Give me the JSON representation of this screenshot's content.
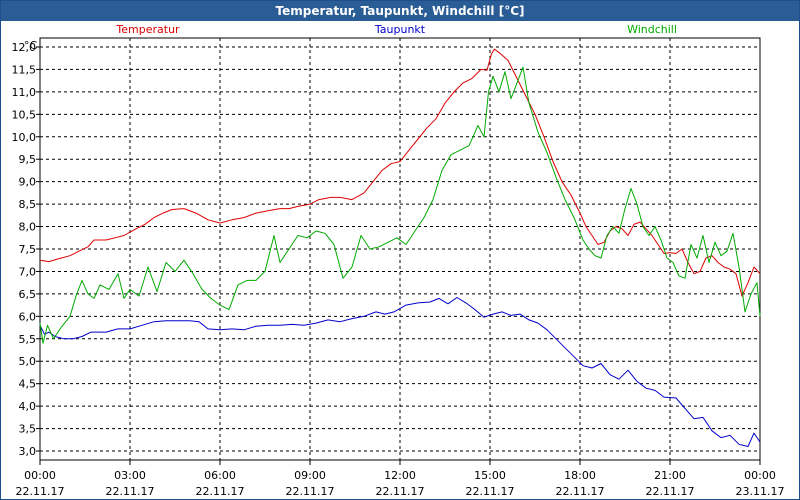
{
  "window": {
    "title": "Temperatur, Taupunkt, Windchill [°C]"
  },
  "chart_data": {
    "type": "line",
    "ylabel": "°C",
    "ylim": [
      2.8,
      12.2
    ],
    "yticks": [
      "3,0",
      "3,5",
      "4,0",
      "4,5",
      "5,0",
      "5,5",
      "6,0",
      "6,5",
      "7,0",
      "7,5",
      "8,0",
      "8,5",
      "9,0",
      "9,5",
      "10,0",
      "10,5",
      "11,0",
      "11,5",
      "12,0"
    ],
    "ytick_values": [
      3.0,
      3.5,
      4.0,
      4.5,
      5.0,
      5.5,
      6.0,
      6.5,
      7.0,
      7.5,
      8.0,
      8.5,
      9.0,
      9.5,
      10.0,
      10.5,
      11.0,
      11.5,
      12.0
    ],
    "xlim_hours": [
      0,
      24
    ],
    "xticks": [
      {
        "h": 0,
        "time": "00:00",
        "date": "22.11.17"
      },
      {
        "h": 3,
        "time": "03:00",
        "date": "22.11.17"
      },
      {
        "h": 6,
        "time": "06:00",
        "date": "22.11.17"
      },
      {
        "h": 9,
        "time": "09:00",
        "date": "22.11.17"
      },
      {
        "h": 12,
        "time": "12:00",
        "date": "22.11.17"
      },
      {
        "h": 15,
        "time": "15:00",
        "date": "22.11.17"
      },
      {
        "h": 18,
        "time": "18:00",
        "date": "22.11.17"
      },
      {
        "h": 21,
        "time": "21:00",
        "date": "22.11.17"
      },
      {
        "h": 24,
        "time": "00:00",
        "date": "23.11.17"
      }
    ],
    "grid": true,
    "series": [
      {
        "name": "Temperatur",
        "color": "#dd0000",
        "legend_anchor": "left",
        "points": [
          [
            0.0,
            7.25
          ],
          [
            0.3,
            7.22
          ],
          [
            0.6,
            7.28
          ],
          [
            1.0,
            7.35
          ],
          [
            1.3,
            7.45
          ],
          [
            1.6,
            7.55
          ],
          [
            1.8,
            7.7
          ],
          [
            2.2,
            7.7
          ],
          [
            2.5,
            7.75
          ],
          [
            2.8,
            7.8
          ],
          [
            3.2,
            7.95
          ],
          [
            3.5,
            8.05
          ],
          [
            3.8,
            8.2
          ],
          [
            4.1,
            8.3
          ],
          [
            4.4,
            8.38
          ],
          [
            4.8,
            8.4
          ],
          [
            5.2,
            8.3
          ],
          [
            5.6,
            8.15
          ],
          [
            6.0,
            8.08
          ],
          [
            6.4,
            8.15
          ],
          [
            6.8,
            8.2
          ],
          [
            7.2,
            8.3
          ],
          [
            7.6,
            8.35
          ],
          [
            8.0,
            8.4
          ],
          [
            8.3,
            8.4
          ],
          [
            8.6,
            8.45
          ],
          [
            9.0,
            8.5
          ],
          [
            9.3,
            8.6
          ],
          [
            9.7,
            8.65
          ],
          [
            10.0,
            8.65
          ],
          [
            10.4,
            8.6
          ],
          [
            10.8,
            8.75
          ],
          [
            11.1,
            9.0
          ],
          [
            11.4,
            9.25
          ],
          [
            11.7,
            9.4
          ],
          [
            12.0,
            9.45
          ],
          [
            12.3,
            9.7
          ],
          [
            12.6,
            9.95
          ],
          [
            12.9,
            10.2
          ],
          [
            13.2,
            10.4
          ],
          [
            13.5,
            10.75
          ],
          [
            13.8,
            11.0
          ],
          [
            14.1,
            11.2
          ],
          [
            14.4,
            11.3
          ],
          [
            14.7,
            11.5
          ],
          [
            14.9,
            11.48
          ],
          [
            15.05,
            11.85
          ],
          [
            15.15,
            11.95
          ],
          [
            15.35,
            11.85
          ],
          [
            15.6,
            11.7
          ],
          [
            15.9,
            11.3
          ],
          [
            16.2,
            10.9
          ],
          [
            16.5,
            10.5
          ],
          [
            16.8,
            10.0
          ],
          [
            17.1,
            9.45
          ],
          [
            17.4,
            9.0
          ],
          [
            17.7,
            8.7
          ],
          [
            18.0,
            8.3
          ],
          [
            18.2,
            8.0
          ],
          [
            18.4,
            7.8
          ],
          [
            18.6,
            7.6
          ],
          [
            18.8,
            7.65
          ],
          [
            19.0,
            7.9
          ],
          [
            19.2,
            8.0
          ],
          [
            19.4,
            7.95
          ],
          [
            19.6,
            7.8
          ],
          [
            19.8,
            8.05
          ],
          [
            20.0,
            8.1
          ],
          [
            20.2,
            7.95
          ],
          [
            20.4,
            7.8
          ],
          [
            20.6,
            7.6
          ],
          [
            20.8,
            7.4
          ],
          [
            21.0,
            7.42
          ],
          [
            21.2,
            7.4
          ],
          [
            21.4,
            7.5
          ],
          [
            21.6,
            7.2
          ],
          [
            21.8,
            6.95
          ],
          [
            22.0,
            7.0
          ],
          [
            22.2,
            7.3
          ],
          [
            22.4,
            7.35
          ],
          [
            22.6,
            7.2
          ],
          [
            22.8,
            7.1
          ],
          [
            23.0,
            7.05
          ],
          [
            23.2,
            6.95
          ],
          [
            23.4,
            6.45
          ],
          [
            23.6,
            6.75
          ],
          [
            23.8,
            7.1
          ],
          [
            24.0,
            6.95
          ]
        ]
      },
      {
        "name": "Taupunkt",
        "color": "#0000cc",
        "legend_anchor": "middle",
        "points": [
          [
            0.0,
            5.8
          ],
          [
            0.15,
            5.6
          ],
          [
            0.3,
            5.65
          ],
          [
            0.5,
            5.55
          ],
          [
            0.8,
            5.5
          ],
          [
            1.1,
            5.5
          ],
          [
            1.4,
            5.55
          ],
          [
            1.7,
            5.65
          ],
          [
            2.2,
            5.65
          ],
          [
            2.6,
            5.72
          ],
          [
            3.0,
            5.72
          ],
          [
            3.4,
            5.8
          ],
          [
            3.8,
            5.88
          ],
          [
            4.2,
            5.9
          ],
          [
            4.6,
            5.9
          ],
          [
            5.0,
            5.9
          ],
          [
            5.3,
            5.88
          ],
          [
            5.6,
            5.72
          ],
          [
            6.0,
            5.7
          ],
          [
            6.4,
            5.72
          ],
          [
            6.8,
            5.7
          ],
          [
            7.2,
            5.78
          ],
          [
            7.6,
            5.8
          ],
          [
            8.0,
            5.8
          ],
          [
            8.4,
            5.82
          ],
          [
            8.8,
            5.8
          ],
          [
            9.2,
            5.85
          ],
          [
            9.6,
            5.92
          ],
          [
            10.0,
            5.88
          ],
          [
            10.4,
            5.95
          ],
          [
            10.8,
            6.0
          ],
          [
            11.2,
            6.1
          ],
          [
            11.5,
            6.05
          ],
          [
            11.8,
            6.1
          ],
          [
            12.2,
            6.25
          ],
          [
            12.6,
            6.3
          ],
          [
            13.0,
            6.32
          ],
          [
            13.3,
            6.4
          ],
          [
            13.6,
            6.28
          ],
          [
            13.9,
            6.42
          ],
          [
            14.2,
            6.3
          ],
          [
            14.5,
            6.15
          ],
          [
            14.8,
            5.98
          ],
          [
            15.1,
            6.05
          ],
          [
            15.4,
            6.1
          ],
          [
            15.7,
            6.02
          ],
          [
            16.0,
            6.05
          ],
          [
            16.3,
            5.92
          ],
          [
            16.6,
            5.85
          ],
          [
            16.9,
            5.7
          ],
          [
            17.2,
            5.5
          ],
          [
            17.5,
            5.3
          ],
          [
            17.8,
            5.1
          ],
          [
            18.1,
            4.9
          ],
          [
            18.4,
            4.85
          ],
          [
            18.7,
            4.95
          ],
          [
            19.0,
            4.7
          ],
          [
            19.3,
            4.6
          ],
          [
            19.6,
            4.8
          ],
          [
            19.9,
            4.55
          ],
          [
            20.2,
            4.4
          ],
          [
            20.5,
            4.35
          ],
          [
            20.8,
            4.2
          ],
          [
            21.2,
            4.18
          ],
          [
            21.5,
            3.95
          ],
          [
            21.8,
            3.72
          ],
          [
            22.1,
            3.75
          ],
          [
            22.4,
            3.45
          ],
          [
            22.7,
            3.3
          ],
          [
            23.0,
            3.35
          ],
          [
            23.3,
            3.15
          ],
          [
            23.6,
            3.1
          ],
          [
            23.8,
            3.4
          ],
          [
            24.0,
            3.2
          ]
        ]
      },
      {
        "name": "Windchill",
        "color": "#00aa00",
        "legend_anchor": "right",
        "points": [
          [
            0.0,
            5.85
          ],
          [
            0.1,
            5.4
          ],
          [
            0.25,
            5.8
          ],
          [
            0.45,
            5.5
          ],
          [
            0.7,
            5.75
          ],
          [
            1.0,
            6.0
          ],
          [
            1.2,
            6.45
          ],
          [
            1.4,
            6.8
          ],
          [
            1.6,
            6.5
          ],
          [
            1.8,
            6.4
          ],
          [
            2.0,
            6.7
          ],
          [
            2.3,
            6.6
          ],
          [
            2.6,
            6.95
          ],
          [
            2.8,
            6.4
          ],
          [
            3.0,
            6.6
          ],
          [
            3.3,
            6.45
          ],
          [
            3.6,
            7.1
          ],
          [
            3.9,
            6.55
          ],
          [
            4.2,
            7.2
          ],
          [
            4.5,
            7.0
          ],
          [
            4.8,
            7.25
          ],
          [
            5.1,
            6.95
          ],
          [
            5.4,
            6.6
          ],
          [
            5.7,
            6.4
          ],
          [
            6.0,
            6.25
          ],
          [
            6.3,
            6.15
          ],
          [
            6.6,
            6.7
          ],
          [
            6.9,
            6.8
          ],
          [
            7.2,
            6.8
          ],
          [
            7.5,
            7.0
          ],
          [
            7.8,
            7.8
          ],
          [
            8.0,
            7.2
          ],
          [
            8.3,
            7.5
          ],
          [
            8.6,
            7.8
          ],
          [
            8.9,
            7.75
          ],
          [
            9.2,
            7.9
          ],
          [
            9.5,
            7.85
          ],
          [
            9.8,
            7.6
          ],
          [
            10.1,
            6.85
          ],
          [
            10.4,
            7.1
          ],
          [
            10.7,
            7.8
          ],
          [
            11.0,
            7.5
          ],
          [
            11.3,
            7.55
          ],
          [
            11.6,
            7.65
          ],
          [
            11.9,
            7.75
          ],
          [
            12.2,
            7.6
          ],
          [
            12.5,
            7.9
          ],
          [
            12.8,
            8.2
          ],
          [
            13.1,
            8.6
          ],
          [
            13.4,
            9.25
          ],
          [
            13.7,
            9.6
          ],
          [
            14.0,
            9.7
          ],
          [
            14.3,
            9.8
          ],
          [
            14.6,
            10.25
          ],
          [
            14.8,
            10.0
          ],
          [
            14.95,
            11.0
          ],
          [
            15.1,
            11.35
          ],
          [
            15.3,
            11.0
          ],
          [
            15.5,
            11.45
          ],
          [
            15.7,
            10.85
          ],
          [
            15.9,
            11.2
          ],
          [
            16.1,
            11.55
          ],
          [
            16.3,
            10.75
          ],
          [
            16.6,
            10.1
          ],
          [
            16.9,
            9.65
          ],
          [
            17.2,
            9.1
          ],
          [
            17.5,
            8.6
          ],
          [
            17.8,
            8.2
          ],
          [
            18.1,
            7.7
          ],
          [
            18.3,
            7.5
          ],
          [
            18.5,
            7.35
          ],
          [
            18.7,
            7.3
          ],
          [
            18.9,
            7.8
          ],
          [
            19.1,
            8.0
          ],
          [
            19.3,
            7.85
          ],
          [
            19.5,
            8.4
          ],
          [
            19.7,
            8.85
          ],
          [
            19.9,
            8.5
          ],
          [
            20.1,
            8.0
          ],
          [
            20.3,
            7.8
          ],
          [
            20.5,
            8.0
          ],
          [
            20.7,
            7.7
          ],
          [
            20.9,
            7.3
          ],
          [
            21.1,
            7.2
          ],
          [
            21.3,
            6.9
          ],
          [
            21.5,
            6.85
          ],
          [
            21.7,
            7.6
          ],
          [
            21.9,
            7.3
          ],
          [
            22.1,
            7.8
          ],
          [
            22.3,
            7.2
          ],
          [
            22.5,
            7.65
          ],
          [
            22.7,
            7.35
          ],
          [
            22.9,
            7.45
          ],
          [
            23.1,
            7.85
          ],
          [
            23.3,
            7.1
          ],
          [
            23.5,
            6.1
          ],
          [
            23.7,
            6.5
          ],
          [
            23.9,
            6.75
          ],
          [
            24.0,
            6.0
          ]
        ]
      }
    ]
  }
}
